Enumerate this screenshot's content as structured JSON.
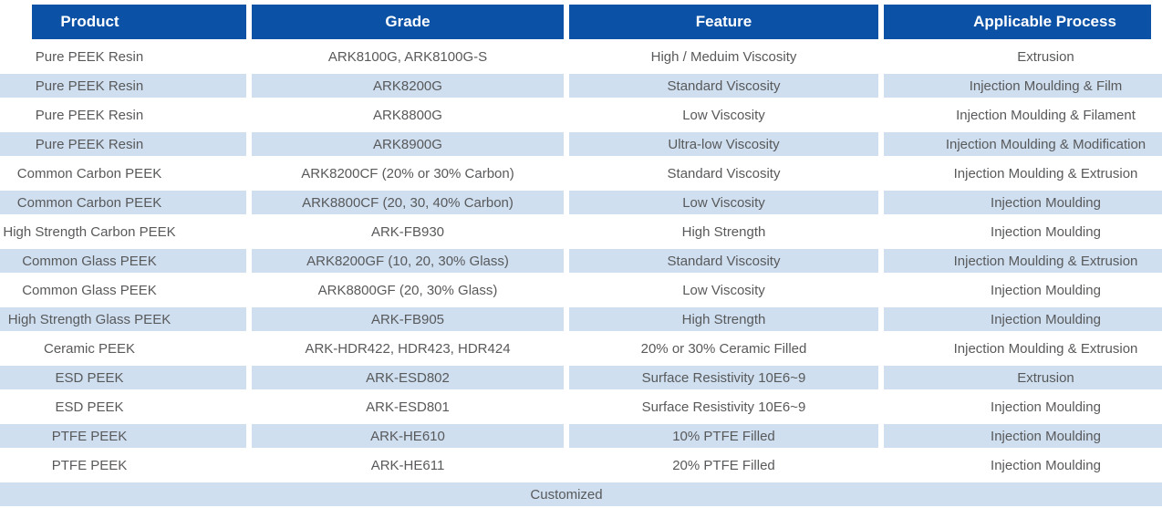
{
  "table": {
    "headers": [
      "Product",
      "Grade",
      "Feature",
      "Applicable Process"
    ],
    "rows": [
      {
        "product": "Pure PEEK Resin",
        "grade": "ARK8100G, ARK8100G-S",
        "feature": "High / Meduim Viscosity",
        "process": "Extrusion"
      },
      {
        "product": "Pure PEEK Resin",
        "grade": "ARK8200G",
        "feature": "Standard Viscosity",
        "process": "Injection Moulding & Film"
      },
      {
        "product": "Pure PEEK Resin",
        "grade": "ARK8800G",
        "feature": "Low Viscosity",
        "process": "Injection Moulding & Filament"
      },
      {
        "product": "Pure PEEK Resin",
        "grade": "ARK8900G",
        "feature": "Ultra-low Viscosity",
        "process": "Injection Moulding & Modification"
      },
      {
        "product": "Common Carbon PEEK",
        "grade": "ARK8200CF (20% or 30% Carbon)",
        "feature": "Standard Viscosity",
        "process": "Injection Moulding & Extrusion"
      },
      {
        "product": "Common Carbon PEEK",
        "grade": "ARK8800CF (20, 30, 40% Carbon)",
        "feature": "Low Viscosity",
        "process": "Injection Moulding"
      },
      {
        "product": "High Strength Carbon PEEK",
        "grade": "ARK-FB930",
        "feature": "High Strength",
        "process": "Injection Moulding"
      },
      {
        "product": "Common Glass PEEK",
        "grade": "ARK8200GF (10, 20, 30% Glass)",
        "feature": "Standard Viscosity",
        "process": "Injection Moulding & Extrusion"
      },
      {
        "product": "Common Glass PEEK",
        "grade": "ARK8800GF (20, 30% Glass)",
        "feature": "Low Viscosity",
        "process": "Injection Moulding"
      },
      {
        "product": "High Strength Glass PEEK",
        "grade": "ARK-FB905",
        "feature": "High Strength",
        "process": "Injection Moulding"
      },
      {
        "product": "Ceramic PEEK",
        "grade": "ARK-HDR422, HDR423, HDR424",
        "feature": "20% or 30% Ceramic Filled",
        "process": "Injection Moulding & Extrusion"
      },
      {
        "product": "ESD PEEK",
        "grade": "ARK-ESD802",
        "feature": "Surface Resistivity 10E6~9",
        "process": "Extrusion"
      },
      {
        "product": "ESD PEEK",
        "grade": "ARK-ESD801",
        "feature": "Surface Resistivity 10E6~9",
        "process": "Injection Moulding"
      },
      {
        "product": "PTFE PEEK",
        "grade": "ARK-HE610",
        "feature": "10% PTFE Filled",
        "process": "Injection Moulding"
      },
      {
        "product": "PTFE PEEK",
        "grade": "ARK-HE611",
        "feature": "20% PTFE Filled",
        "process": "Injection Moulding"
      }
    ],
    "footer_row": "Customized"
  },
  "colors": {
    "header_bg": "#0b51a5",
    "header_text": "#ffffff",
    "row_alt_bg": "#cfdfef",
    "body_text": "#58595b"
  }
}
